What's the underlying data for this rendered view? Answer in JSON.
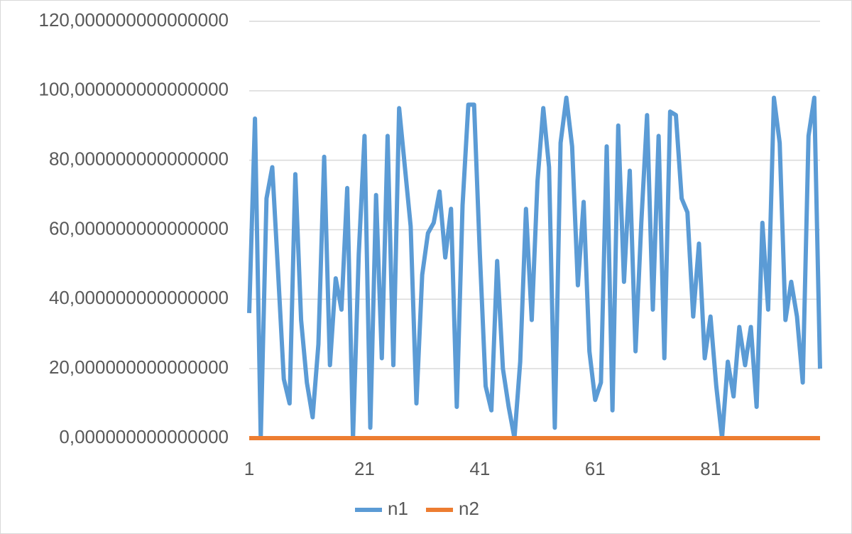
{
  "chart_data": {
    "type": "line",
    "categories": [
      "1",
      null,
      null,
      null,
      null,
      null,
      null,
      null,
      null,
      null,
      null,
      null,
      null,
      null,
      null,
      null,
      null,
      null,
      null,
      null,
      "21",
      null,
      null,
      null,
      null,
      null,
      null,
      null,
      null,
      null,
      null,
      null,
      null,
      null,
      null,
      null,
      null,
      null,
      null,
      null,
      "41",
      null,
      null,
      null,
      null,
      null,
      null,
      null,
      null,
      null,
      null,
      null,
      null,
      null,
      null,
      null,
      null,
      null,
      null,
      null,
      "61",
      null,
      null,
      null,
      null,
      null,
      null,
      null,
      null,
      null,
      null,
      null,
      null,
      null,
      null,
      null,
      null,
      null,
      null,
      null,
      "81",
      null,
      null,
      null,
      null,
      null,
      null,
      null,
      null,
      null,
      null,
      null,
      null,
      null,
      null,
      null,
      null,
      null,
      null,
      null
    ],
    "series": [
      {
        "name": "n1",
        "color": "#5b9bd5",
        "values": [
          36,
          92,
          0,
          69,
          78,
          48,
          17,
          10,
          76,
          34,
          16,
          6,
          27,
          81,
          21,
          46,
          37,
          72,
          0,
          53,
          87,
          3,
          70,
          23,
          87,
          21,
          95,
          78,
          61,
          10,
          47,
          59,
          62,
          71,
          52,
          66,
          9,
          67,
          96,
          96,
          53,
          15,
          8,
          51,
          20,
          9,
          0,
          22,
          66,
          34,
          74,
          95,
          78,
          3,
          85,
          98,
          84,
          44,
          68,
          25,
          11,
          16,
          84,
          8,
          90,
          45,
          77,
          25,
          62,
          93,
          37,
          87,
          23,
          94,
          93,
          69,
          65,
          35,
          56,
          23,
          35,
          15,
          0,
          22,
          12,
          32,
          21,
          32,
          9,
          62,
          37,
          98,
          85,
          34,
          45,
          35,
          16,
          87,
          98,
          20
        ]
      },
      {
        "name": "n2",
        "color": "#ed7d31",
        "values": [
          0,
          0,
          0,
          0,
          0,
          0,
          0,
          0,
          0,
          0,
          0,
          0,
          0,
          0,
          0,
          0,
          0,
          0,
          0,
          0,
          0,
          0,
          0,
          0,
          0,
          0,
          0,
          0,
          0,
          0,
          0,
          0,
          0,
          0,
          0,
          0,
          0,
          0,
          0,
          0,
          0,
          0,
          0,
          0,
          0,
          0,
          0,
          0,
          0,
          0,
          0,
          0,
          0,
          0,
          0,
          0,
          0,
          0,
          0,
          0,
          0,
          0,
          0,
          0,
          0,
          0,
          0,
          0,
          0,
          0,
          0,
          0,
          0,
          0,
          0,
          0,
          0,
          0,
          0,
          0,
          0,
          0,
          0,
          0,
          0,
          0,
          0,
          0,
          0,
          0,
          0,
          0,
          0,
          0,
          0,
          0,
          0,
          0,
          0,
          0
        ]
      }
    ],
    "ylim": [
      0,
      120
    ],
    "yticks": [
      {
        "value": 0,
        "label": "0,000000000000000"
      },
      {
        "value": 20,
        "label": "20,000000000000000"
      },
      {
        "value": 40,
        "label": "40,000000000000000"
      },
      {
        "value": 60,
        "label": "60,000000000000000"
      },
      {
        "value": 80,
        "label": "80,000000000000000"
      },
      {
        "value": 100,
        "label": "100,000000000000000"
      },
      {
        "value": 120,
        "label": "120,000000000000000"
      }
    ],
    "grid": true,
    "legend": "bottom"
  }
}
